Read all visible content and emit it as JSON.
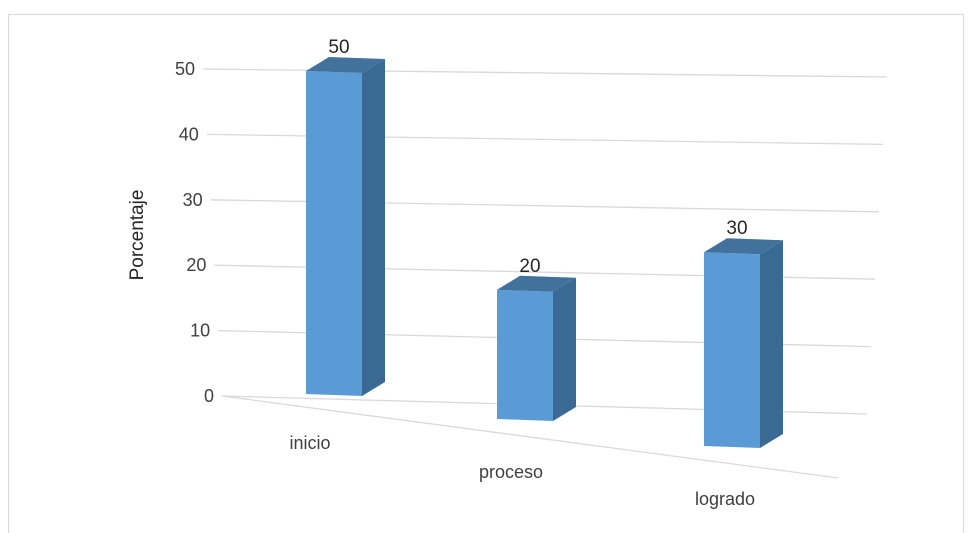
{
  "chart_data": {
    "type": "bar",
    "categories": [
      "inicio",
      "proceso",
      "logrado"
    ],
    "values": [
      50,
      20,
      30
    ],
    "title": "",
    "xlabel": "",
    "ylabel": "Porcentaje",
    "ylim": [
      0,
      50
    ],
    "yticks": [
      0,
      10,
      20,
      30,
      40,
      50
    ],
    "grid": true,
    "legend": "none",
    "colors": {
      "bar_front": "#5b9bd5",
      "bar_side": "#3a6a94",
      "bar_top": "#41719c",
      "grid": "#d9d9d9"
    }
  }
}
